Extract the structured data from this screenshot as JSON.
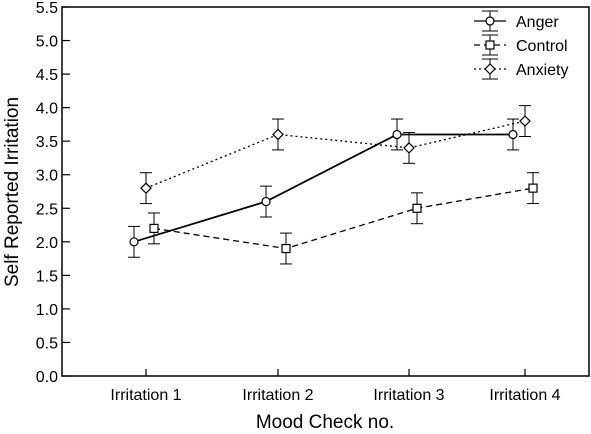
{
  "chart_data": {
    "type": "line",
    "xlabel": "Mood Check no.",
    "ylabel": "Self Reported Irritation",
    "categories": [
      "Irritation 1",
      "Irritation 2",
      "Irritation 3",
      "Irritation 4"
    ],
    "ylim": [
      0.0,
      5.5
    ],
    "yticks": [
      "0.0",
      "0.5",
      "1.0",
      "1.5",
      "2.0",
      "2.5",
      "3.0",
      "3.5",
      "4.0",
      "4.5",
      "5.0",
      "5.5"
    ],
    "grid": false,
    "legend_position": "top-right",
    "error_bars": true,
    "series": [
      {
        "name": "Anger",
        "marker": "circle",
        "line": "solid",
        "values": [
          2.0,
          2.6,
          3.6,
          3.6
        ],
        "errors": [
          0.23,
          0.23,
          0.23,
          0.23
        ]
      },
      {
        "name": "Control",
        "marker": "square",
        "line": "dashed",
        "values": [
          2.2,
          1.9,
          2.5,
          2.8
        ],
        "errors": [
          0.23,
          0.23,
          0.23,
          0.23
        ]
      },
      {
        "name": "Anxiety",
        "marker": "diamond",
        "line": "dotted",
        "values": [
          2.8,
          3.6,
          3.4,
          3.8
        ],
        "errors": [
          0.23,
          0.23,
          0.23,
          0.23
        ]
      }
    ]
  }
}
